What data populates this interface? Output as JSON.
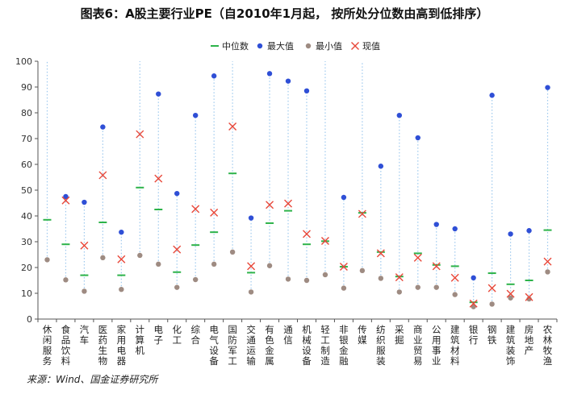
{
  "title": "图表6：A股主要行业PE（自2010年1月起， 按所处分位数由高到低排序）",
  "source": "来源：Wind、国金证券研究所",
  "colors": {
    "median": "#2db34a",
    "max": "#2f4fd6",
    "min": "#9e8b82",
    "current": "#e8483a",
    "range_line": "#9ec9ee",
    "axis": "#555555"
  },
  "chart_data": {
    "type": "scatter",
    "ylim": [
      0,
      100
    ],
    "yticks": [
      0,
      10,
      20,
      30,
      40,
      50,
      60,
      70,
      80,
      90,
      100
    ],
    "grid": false,
    "legend_position": "top",
    "legend": [
      {
        "key": "median",
        "label": "中位数",
        "marker": "dash"
      },
      {
        "key": "max",
        "label": "最大值",
        "marker": "circle"
      },
      {
        "key": "min",
        "label": "最小值",
        "marker": "circle"
      },
      {
        "key": "current",
        "label": "现值",
        "marker": "x"
      }
    ],
    "categories": [
      "休闲服务",
      "食品饮料",
      "汽车",
      "医药生物",
      "家用电器",
      "计算机",
      "电子",
      "化工",
      "综合",
      "电气设备",
      "国防军工",
      "交通运输",
      "有色金属",
      "通信",
      "机械设备",
      "轻工制造",
      "非银金融",
      "传媒",
      "纺织服装",
      "采掘",
      "商业贸易",
      "公用事业",
      "建筑材料",
      "银行",
      "钢铁",
      "建筑装饰",
      "房地产",
      "农林牧渔"
    ],
    "median": [
      38.5,
      29.0,
      17.0,
      37.5,
      17.0,
      51.0,
      42.5,
      18.2,
      28.7,
      33.7,
      56.5,
      18.0,
      37.2,
      42.0,
      29.0,
      30.2,
      20.3,
      41.2,
      26.0,
      16.5,
      25.5,
      21.0,
      20.5,
      6.5,
      17.8,
      13.5,
      15.0,
      34.5
    ],
    "max": [
      null,
      47.5,
      45.3,
      74.5,
      33.7,
      null,
      87.3,
      48.7,
      79.0,
      94.3,
      null,
      39.2,
      95.2,
      92.3,
      88.5,
      null,
      47.2,
      null,
      59.3,
      79.0,
      70.3,
      36.7,
      35.0,
      16.0,
      86.8,
      33.0,
      34.3,
      89.8
    ],
    "min": [
      23.0,
      15.2,
      10.8,
      23.8,
      11.5,
      24.7,
      21.3,
      12.3,
      15.3,
      21.3,
      26.0,
      10.5,
      20.7,
      15.5,
      15.0,
      17.2,
      12.0,
      18.8,
      15.8,
      10.5,
      12.3,
      12.3,
      9.5,
      4.8,
      5.8,
      8.2,
      7.8,
      18.3
    ],
    "current": [
      null,
      46.0,
      28.5,
      55.8,
      23.2,
      71.7,
      54.5,
      27.0,
      42.7,
      41.3,
      74.7,
      20.5,
      44.3,
      44.8,
      33.0,
      30.3,
      20.3,
      40.8,
      25.5,
      16.2,
      23.8,
      20.5,
      16.0,
      6.0,
      12.0,
      9.8,
      8.5,
      22.3
    ]
  }
}
